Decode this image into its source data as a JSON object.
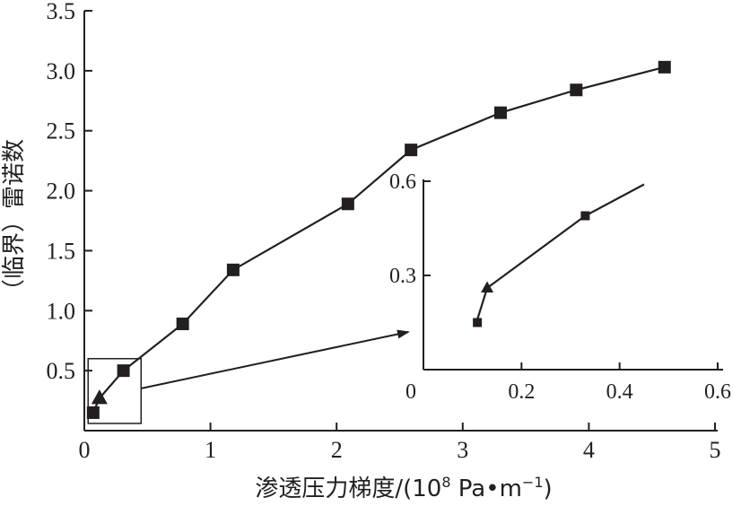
{
  "chart_data": [
    {
      "type": "line",
      "title": "",
      "xlabel": "渗透压力梯度/(10^8 Pa·m^-1)",
      "xlabel_parts": {
        "main": "渗透压力梯度/(10",
        "exp": "8",
        "unit_mid": " Pa",
        "dot": "•",
        "unit_m": "m",
        "exp2": "−1",
        "close": ")"
      },
      "ylabel": "（临界）雷诺数",
      "xlim": [
        0,
        5
      ],
      "ylim": [
        0,
        3.5
      ],
      "x_ticks": [
        "0",
        "1",
        "2",
        "3",
        "4",
        "5"
      ],
      "x_tick_values": [
        0,
        1,
        2,
        3,
        4,
        5
      ],
      "y_ticks": [
        "0.5",
        "1.0",
        "1.5",
        "2.0",
        "2.5",
        "3.0",
        "3.5"
      ],
      "y_tick_values": [
        0.5,
        1.0,
        1.5,
        2.0,
        2.5,
        3.0,
        3.5
      ],
      "grid": false,
      "series": [
        {
          "marker": "square",
          "x": [
            0.07,
            0.31,
            0.78,
            1.18,
            2.09,
            2.59,
            3.3,
            3.9,
            4.6
          ],
          "y": [
            0.15,
            0.5,
            0.89,
            1.34,
            1.89,
            2.34,
            2.65,
            2.84,
            3.03
          ]
        }
      ],
      "triangle_point": {
        "x": 0.12,
        "y": 0.27
      },
      "zoom_box": {
        "x": [
          0.03,
          0.45
        ],
        "y": [
          0.06,
          0.6
        ]
      }
    },
    {
      "type": "line",
      "title": "",
      "inset": true,
      "xlim": [
        0,
        0.6
      ],
      "ylim": [
        0,
        0.6
      ],
      "x_ticks": [
        "0",
        "0.2",
        "0.4",
        "0.6"
      ],
      "x_tick_values": [
        0,
        0.2,
        0.4,
        0.6
      ],
      "y_ticks": [
        "0.3",
        "0.6"
      ],
      "y_tick_values": [
        0.3,
        0.6
      ],
      "line": {
        "x": [
          0.11,
          0.13,
          0.33,
          0.45
        ],
        "y": [
          0.16,
          0.26,
          0.49,
          0.59
        ]
      },
      "square_points": [
        {
          "x": 0.11,
          "y": 0.15
        },
        {
          "x": 0.33,
          "y": 0.49
        }
      ],
      "triangle_point": {
        "x": 0.13,
        "y": 0.26
      }
    }
  ],
  "colors": {
    "ink": "#231f20",
    "background": "#ffffff"
  }
}
